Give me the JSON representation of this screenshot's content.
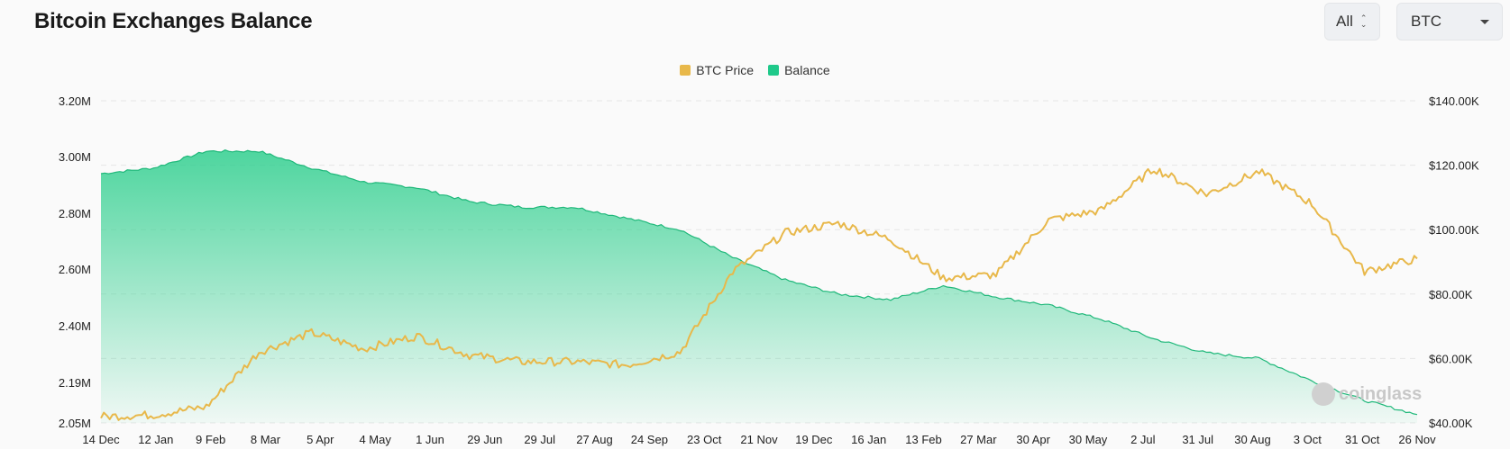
{
  "header": {
    "title": "Bitcoin Exchanges Balance",
    "range_select": "All",
    "coin_select": "BTC"
  },
  "watermark": "coinglass",
  "colors": {
    "price": "#e8b84a",
    "balance": "#1fc98a",
    "balance_line": "#1fb87a"
  },
  "chart_data": {
    "type": "area",
    "title": "Bitcoin Exchanges Balance",
    "legend": [
      "BTC Price",
      "Balance"
    ],
    "legend_position": "top-center",
    "grid": true,
    "x_ticks": [
      "14 Dec",
      "12 Jan",
      "9 Feb",
      "8 Mar",
      "5 Apr",
      "4 May",
      "1 Jun",
      "29 Jun",
      "29 Jul",
      "27 Aug",
      "24 Sep",
      "23 Oct",
      "21 Nov",
      "19 Dec",
      "16 Jan",
      "13 Feb",
      "27 Mar",
      "30 Apr",
      "30 May",
      "2 Jul",
      "31 Jul",
      "30 Aug",
      "3 Oct",
      "31 Oct",
      "26 Nov"
    ],
    "y_left_ticks": [
      "3.20M",
      "3.00M",
      "2.80M",
      "2.60M",
      "2.40M",
      "2.19M",
      "2.05M"
    ],
    "y_right_ticks": [
      "$140.00K",
      "$120.00K",
      "$100.00K",
      "$80.00K",
      "$60.00K",
      "$40.00K"
    ],
    "y_left_range": [
      2050000,
      3200000
    ],
    "y_right_range": [
      40000,
      140000
    ],
    "series": [
      {
        "name": "Balance",
        "axis": "left",
        "values": [
          2940000,
          2960000,
          3020000,
          3020000,
          2960000,
          2910000,
          2890000,
          2840000,
          2820000,
          2820000,
          2780000,
          2740000,
          2640000,
          2560000,
          2510000,
          2490000,
          2540000,
          2500000,
          2470000,
          2420000,
          2350000,
          2300000,
          2280000,
          2200000,
          2130000,
          2080000
        ]
      },
      {
        "name": "BTC Price",
        "axis": "right",
        "values": [
          42000,
          42500,
          45000,
          62000,
          68000,
          63000,
          67000,
          61000,
          59000,
          59000,
          58000,
          62000,
          87000,
          99000,
          102000,
          97000,
          85000,
          86000,
          103000,
          106000,
          119000,
          111000,
          118000,
          108000,
          87000,
          91000
        ]
      }
    ]
  }
}
